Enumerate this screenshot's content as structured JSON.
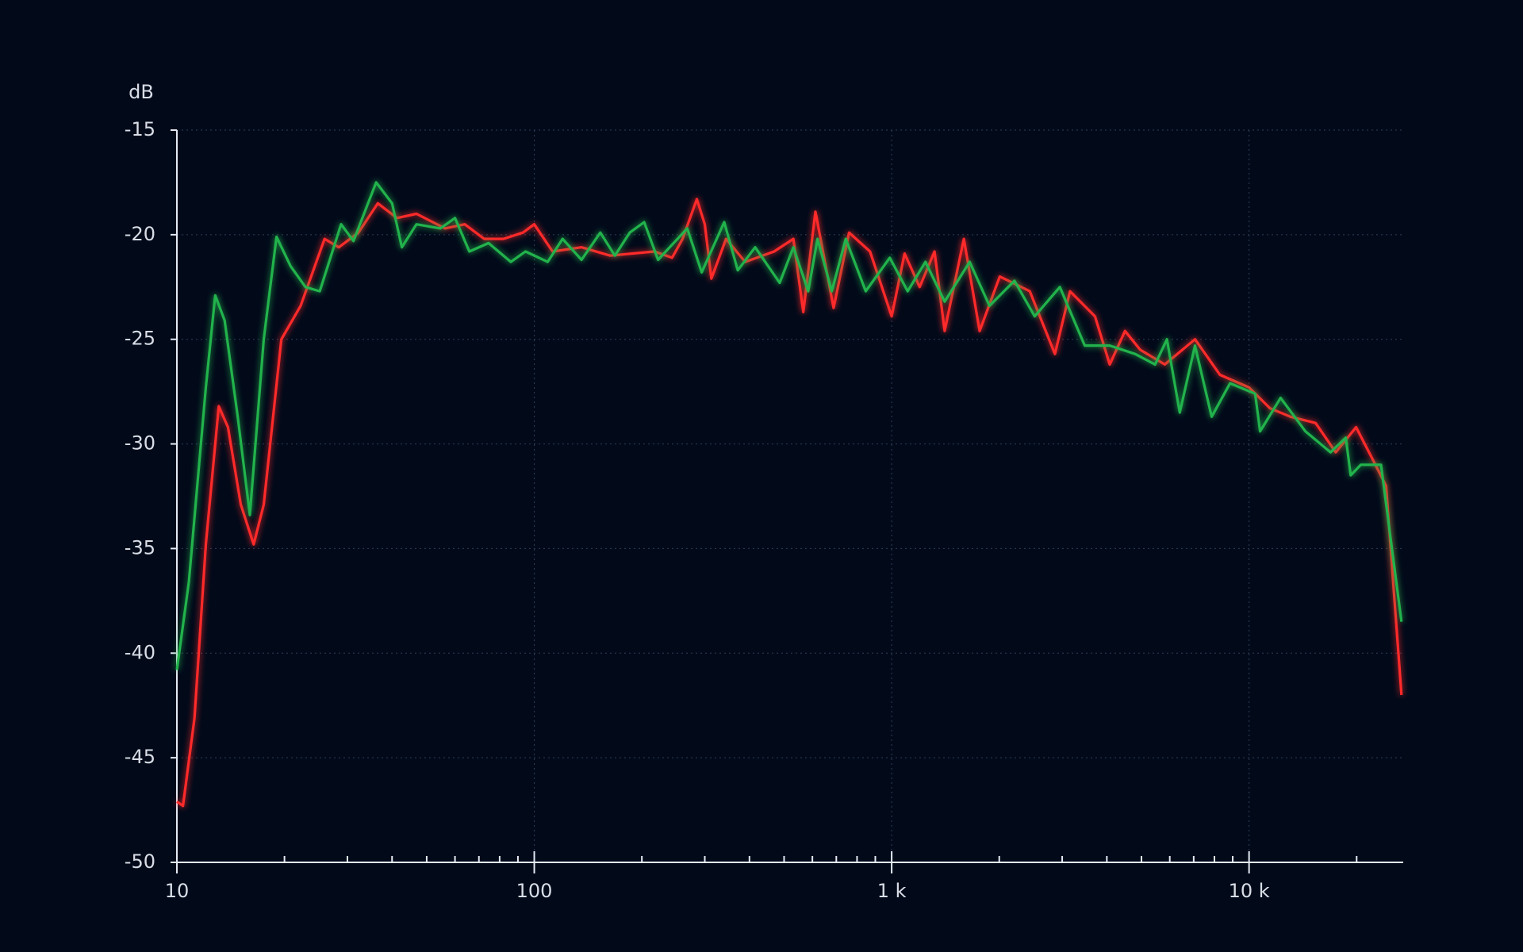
{
  "chart_data": {
    "type": "line",
    "y_label": "dB",
    "x_scale": "log",
    "grid": true,
    "background": "#020a1a",
    "xlim": [
      10,
      27000
    ],
    "ylim": [
      -50,
      -15
    ],
    "xticks": [
      10,
      100,
      {
        "value": 1000,
        "label": "1 k"
      },
      {
        "value": 10000,
        "label": "10 k"
      }
    ],
    "xticks_minor": [
      20,
      30,
      40,
      50,
      60,
      70,
      80,
      90,
      200,
      300,
      400,
      500,
      600,
      700,
      800,
      900,
      2000,
      3000,
      4000,
      5000,
      6000,
      7000,
      8000,
      9000,
      20000
    ],
    "yticks": [
      -50,
      -45,
      -40,
      -35,
      -30,
      -25,
      -20,
      -15
    ],
    "series": [
      {
        "name": "red",
        "color": "#ff2a2a",
        "x": [
          10,
          10.4,
          11.2,
          12.05,
          13.1,
          13.9,
          15.1,
          16.4,
          17.5,
          19.6,
          22.2,
          25.9,
          28.4,
          32.2,
          36.5,
          41.3,
          46.8,
          56.3,
          63.9,
          72.4,
          82,
          93,
          100,
          112.5,
          135.6,
          163,
          217,
          243,
          260,
          285,
          300,
          313,
          344,
          389,
          469,
          531,
          566,
          612,
          688,
          760,
          870,
          1000,
          1087,
          1198,
          1318,
          1407,
          1592,
          1763,
          2007,
          2435,
          2863,
          3155,
          3705,
          4076,
          4497,
          4960,
          5810,
          7060,
          8290,
          10000,
          11450,
          13060,
          15350,
          17480,
          19930,
          21960,
          24180,
          26700
        ],
        "values": [
          -47.1,
          -47.3,
          -43.1,
          -34.8,
          -28.2,
          -29.2,
          -32.9,
          -34.8,
          -32.9,
          -25.0,
          -23.4,
          -20.2,
          -20.6,
          -19.9,
          -18.5,
          -19.2,
          -19.0,
          -19.7,
          -19.5,
          -20.2,
          -20.2,
          -19.9,
          -19.5,
          -20.8,
          -20.6,
          -21.0,
          -20.8,
          -21.1,
          -20.2,
          -18.3,
          -19.5,
          -22.1,
          -20.2,
          -21.3,
          -20.8,
          -20.2,
          -23.7,
          -18.9,
          -23.5,
          -19.9,
          -20.8,
          -23.9,
          -20.9,
          -22.5,
          -20.8,
          -24.6,
          -20.2,
          -24.6,
          -22.0,
          -22.7,
          -25.7,
          -22.7,
          -23.9,
          -26.2,
          -24.6,
          -25.5,
          -26.2,
          -25.0,
          -26.7,
          -27.3,
          -28.3,
          -28.7,
          -29.0,
          -30.4,
          -29.2,
          -30.6,
          -32.0,
          -42.0
        ]
      },
      {
        "name": "green",
        "color": "#22b34c",
        "x": [
          10,
          10.8,
          12.05,
          12.8,
          13.6,
          14.8,
          16.0,
          17.5,
          19.0,
          20.8,
          22.9,
          25.1,
          28.8,
          31.2,
          36.1,
          40,
          42.6,
          46.8,
          54.6,
          60,
          65.8,
          74.5,
          86,
          94.5,
          109,
          120,
          135.6,
          153,
          168,
          185,
          203,
          222,
          268,
          294,
          340,
          371,
          415,
          486,
          531,
          584,
          620,
          680,
          744,
          846,
          988,
          1109,
          1243,
          1407,
          1653,
          1878,
          2206,
          2513,
          2955,
          3470,
          4076,
          4800,
          5460,
          5890,
          6400,
          7060,
          7860,
          8850,
          10400,
          10740,
          12250,
          14380,
          16910,
          18650,
          19250,
          20540,
          23400,
          26700
        ],
        "values": [
          -40.8,
          -36.6,
          -27.3,
          -22.9,
          -24.1,
          -28.7,
          -33.4,
          -25.0,
          -20.1,
          -21.5,
          -22.5,
          -22.7,
          -19.5,
          -20.3,
          -17.5,
          -18.5,
          -20.6,
          -19.5,
          -19.7,
          -19.2,
          -20.8,
          -20.4,
          -21.3,
          -20.8,
          -21.3,
          -20.2,
          -21.2,
          -19.9,
          -21.0,
          -19.9,
          -19.4,
          -21.2,
          -19.7,
          -21.8,
          -19.4,
          -21.7,
          -20.6,
          -22.3,
          -20.6,
          -22.7,
          -20.2,
          -22.7,
          -20.2,
          -22.7,
          -21.1,
          -22.7,
          -21.3,
          -23.2,
          -21.3,
          -23.4,
          -22.2,
          -23.9,
          -22.5,
          -25.3,
          -25.3,
          -25.7,
          -26.2,
          -25.0,
          -28.5,
          -25.3,
          -28.7,
          -27.1,
          -27.6,
          -29.4,
          -27.8,
          -29.4,
          -30.4,
          -29.7,
          -31.5,
          -31.0,
          -31.0,
          -38.5
        ]
      }
    ]
  }
}
